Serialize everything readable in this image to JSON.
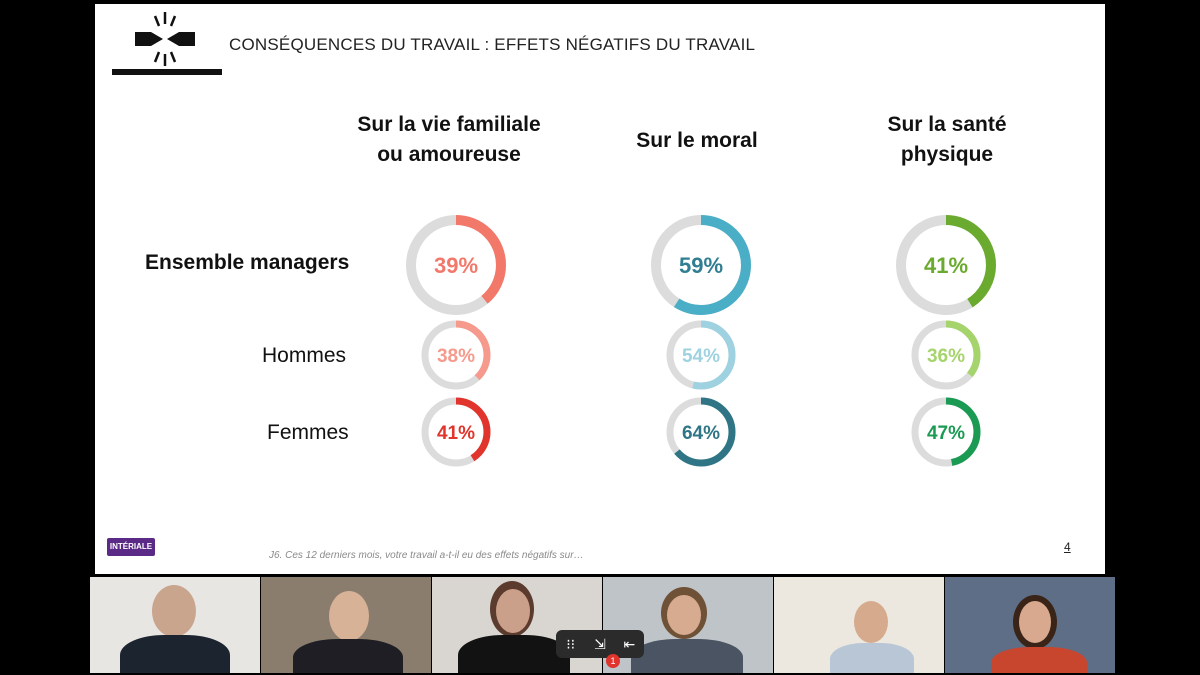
{
  "slide": {
    "title": "CONSÉQUENCES DU TRAVAIL : EFFETS NÉGATIFS DU TRAVAIL",
    "brand": "INTÉRIALE",
    "footnote": "J6. Ces 12 derniers mois, votre travail a-t-il eu des effets négatifs sur…",
    "page_number": "4",
    "columns": [
      "Sur la vie familiale\nou amoureuse",
      "Sur le moral",
      "Sur la santé\nphysique"
    ],
    "rows": [
      "Ensemble managers",
      "Hommes",
      "Femmes"
    ]
  },
  "chart_data": {
    "type": "donut",
    "columns": [
      "Sur la vie familiale ou amoureuse",
      "Sur le moral",
      "Sur la santé physique"
    ],
    "rows": [
      "Ensemble managers",
      "Hommes",
      "Femmes"
    ],
    "values": [
      [
        39,
        59,
        41
      ],
      [
        38,
        54,
        36
      ],
      [
        41,
        64,
        47
      ]
    ],
    "labels": [
      [
        "39%",
        "59%",
        "41%"
      ],
      [
        "38%",
        "54%",
        "36%"
      ],
      [
        "41%",
        "64%",
        "47%"
      ]
    ],
    "colors": [
      [
        "#f2786a",
        "#4aaec6",
        "#6aaa2e"
      ],
      [
        "#f59a8c",
        "#9fd2e0",
        "#a6d46c"
      ],
      [
        "#e0342c",
        "#2f7585",
        "#1a9a52"
      ]
    ],
    "text_colors": [
      [
        "#f2786a",
        "#2f7e92",
        "#6aaa2e"
      ],
      [
        "#f59a8c",
        "#9fd2e0",
        "#a6d46c"
      ],
      [
        "#e0342c",
        "#2f7585",
        "#1a9a52"
      ]
    ],
    "track_color": "#dcdcdc"
  },
  "meeting": {
    "participants": [
      "participant-1",
      "participant-2",
      "participant-3",
      "participant-4",
      "participant-5",
      "participant-6"
    ],
    "notification_count": "1",
    "controls": [
      "⁝⁝",
      "⇲",
      "⇤"
    ]
  }
}
